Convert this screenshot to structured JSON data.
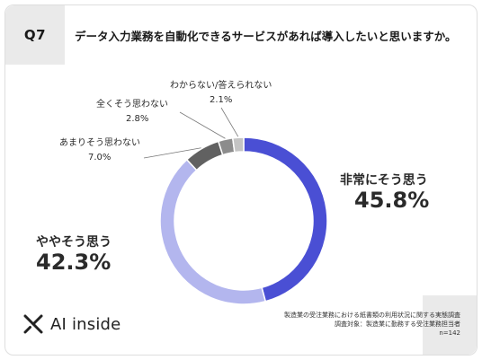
{
  "question": {
    "number": "Q7",
    "text": "データ入力業務を自動化できるサービスがあれば導入したいと思いますか。"
  },
  "chart_data": {
    "type": "pie",
    "donut": true,
    "categories": [
      "非常にそう思う",
      "ややそう思う",
      "あまりそう思わない",
      "全くそう思わない",
      "わからない/答えられない"
    ],
    "values": [
      45.8,
      42.3,
      7.0,
      2.8,
      2.1
    ],
    "value_labels": [
      "45.8%",
      "42.3%",
      "7.0%",
      "2.8%",
      "2.1%"
    ],
    "colors": [
      "#4a4fd4",
      "#b3b6ee",
      "#616161",
      "#8c8c8c",
      "#c4c4c4"
    ]
  },
  "logo": {
    "text": "AI inside"
  },
  "source": {
    "line1": "製造業の受注業務における紙書類の利用状況に関する実態調査",
    "line2": "調査対象：製造業に勤務する受注業務担当者",
    "line3": "n=142"
  }
}
